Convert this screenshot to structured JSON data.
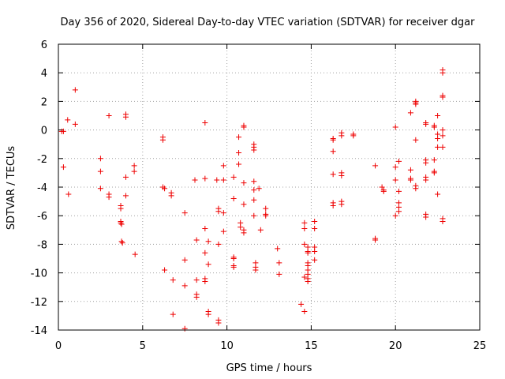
{
  "chart_data": {
    "type": "scatter",
    "title": "Day 356 of 2020, Sidereal Day-to-day VTEC variation (SDTVAR) for receiver dgar",
    "xlabel": "GPS time / hours",
    "ylabel": "SDTVAR / TECUs",
    "xlim": [
      0,
      25
    ],
    "ylim": [
      -14,
      6
    ],
    "xticks": [
      0,
      5,
      10,
      15,
      20,
      25
    ],
    "yticks": [
      -14,
      -12,
      -10,
      -8,
      -6,
      -4,
      -2,
      0,
      2,
      4,
      6
    ],
    "grid": true,
    "marker": "plus",
    "color": "#ee0000",
    "series": [
      {
        "name": "SDTVAR",
        "points": [
          [
            0.2,
            -0.1
          ],
          [
            0.3,
            -0.1
          ],
          [
            0.3,
            -2.6
          ],
          [
            0.55,
            0.7
          ],
          [
            0.6,
            -4.5
          ],
          [
            1.0,
            2.8
          ],
          [
            1.0,
            0.4
          ],
          [
            2.5,
            -2.0
          ],
          [
            2.5,
            -2.9
          ],
          [
            2.5,
            -4.1
          ],
          [
            3.0,
            1.0
          ],
          [
            3.0,
            -4.5
          ],
          [
            3.0,
            -4.7
          ],
          [
            3.7,
            -5.3
          ],
          [
            3.7,
            -5.5
          ],
          [
            3.7,
            -6.4
          ],
          [
            3.7,
            -6.5
          ],
          [
            3.75,
            -6.6
          ],
          [
            3.75,
            -7.8
          ],
          [
            3.8,
            -7.9
          ],
          [
            4.0,
            1.1
          ],
          [
            4.0,
            0.9
          ],
          [
            4.0,
            -3.3
          ],
          [
            4.0,
            -4.6
          ],
          [
            4.5,
            -2.5
          ],
          [
            4.5,
            -2.9
          ],
          [
            4.55,
            -8.7
          ],
          [
            6.2,
            -0.5
          ],
          [
            6.2,
            -0.7
          ],
          [
            6.2,
            -4.0
          ],
          [
            6.3,
            -4.1
          ],
          [
            6.3,
            -9.8
          ],
          [
            6.7,
            -4.4
          ],
          [
            6.7,
            -4.6
          ],
          [
            6.8,
            -10.5
          ],
          [
            6.8,
            -12.9
          ],
          [
            7.5,
            -5.8
          ],
          [
            7.5,
            -9.1
          ],
          [
            7.5,
            -10.9
          ],
          [
            7.5,
            -13.9
          ],
          [
            8.1,
            -3.5
          ],
          [
            8.2,
            -7.7
          ],
          [
            8.2,
            -10.5
          ],
          [
            8.2,
            -11.5
          ],
          [
            8.2,
            -11.7
          ],
          [
            8.7,
            0.5
          ],
          [
            8.7,
            -3.4
          ],
          [
            8.7,
            -6.9
          ],
          [
            8.7,
            -8.6
          ],
          [
            8.7,
            -10.4
          ],
          [
            8.7,
            -10.6
          ],
          [
            8.9,
            -7.8
          ],
          [
            8.9,
            -9.4
          ],
          [
            8.9,
            -12.7
          ],
          [
            8.9,
            -12.9
          ],
          [
            9.4,
            -3.5
          ],
          [
            9.5,
            -5.5
          ],
          [
            9.5,
            -5.7
          ],
          [
            9.5,
            -8.0
          ],
          [
            9.5,
            -13.3
          ],
          [
            9.5,
            -13.5
          ],
          [
            9.8,
            -2.5
          ],
          [
            9.8,
            -3.5
          ],
          [
            9.8,
            -5.8
          ],
          [
            9.8,
            -7.1
          ],
          [
            10.4,
            -3.3
          ],
          [
            10.4,
            -4.8
          ],
          [
            10.4,
            -8.9
          ],
          [
            10.4,
            -9.0
          ],
          [
            10.4,
            -9.5
          ],
          [
            10.4,
            -9.6
          ],
          [
            10.7,
            -0.5
          ],
          [
            10.7,
            -1.6
          ],
          [
            10.7,
            -2.4
          ],
          [
            10.8,
            -6.5
          ],
          [
            10.8,
            -6.8
          ],
          [
            11.0,
            0.3
          ],
          [
            11.0,
            0.2
          ],
          [
            11.0,
            -3.7
          ],
          [
            11.0,
            -5.2
          ],
          [
            11.0,
            -7.0
          ],
          [
            11.0,
            -7.2
          ],
          [
            11.6,
            -1.0
          ],
          [
            11.6,
            -1.2
          ],
          [
            11.6,
            -1.4
          ],
          [
            11.6,
            -3.6
          ],
          [
            11.6,
            -4.2
          ],
          [
            11.6,
            -4.9
          ],
          [
            11.6,
            -6.0
          ],
          [
            11.7,
            -9.3
          ],
          [
            11.7,
            -9.6
          ],
          [
            11.7,
            -9.8
          ],
          [
            11.9,
            -4.1
          ],
          [
            12.0,
            -7.0
          ],
          [
            12.3,
            -5.5
          ],
          [
            12.3,
            -5.9
          ],
          [
            12.3,
            -6.0
          ],
          [
            13.0,
            -8.3
          ],
          [
            13.1,
            -9.3
          ],
          [
            13.1,
            -10.1
          ],
          [
            14.4,
            -12.2
          ],
          [
            14.6,
            -6.5
          ],
          [
            14.6,
            -6.9
          ],
          [
            14.6,
            -8.0
          ],
          [
            14.6,
            -10.3
          ],
          [
            14.6,
            -12.7
          ],
          [
            14.8,
            -8.2
          ],
          [
            14.8,
            -8.5
          ],
          [
            14.8,
            -8.6
          ],
          [
            14.8,
            -9.3
          ],
          [
            14.8,
            -9.5
          ],
          [
            14.8,
            -9.8
          ],
          [
            14.8,
            -10.1
          ],
          [
            14.8,
            -10.4
          ],
          [
            14.8,
            -10.6
          ],
          [
            15.2,
            -6.4
          ],
          [
            15.2,
            -6.9
          ],
          [
            15.2,
            -8.2
          ],
          [
            15.2,
            -8.5
          ],
          [
            15.2,
            -9.1
          ],
          [
            16.3,
            -0.6
          ],
          [
            16.3,
            -0.7
          ],
          [
            16.3,
            -1.5
          ],
          [
            16.3,
            -3.1
          ],
          [
            16.3,
            -5.1
          ],
          [
            16.3,
            -5.3
          ],
          [
            16.8,
            -0.2
          ],
          [
            16.8,
            -0.4
          ],
          [
            16.8,
            -3.0
          ],
          [
            16.8,
            -3.2
          ],
          [
            16.8,
            -5.0
          ],
          [
            16.8,
            -5.2
          ],
          [
            17.5,
            -0.3
          ],
          [
            17.5,
            -0.4
          ],
          [
            18.8,
            -2.5
          ],
          [
            18.8,
            -7.6
          ],
          [
            18.8,
            -7.7
          ],
          [
            19.2,
            -4.0
          ],
          [
            19.3,
            -4.2
          ],
          [
            19.3,
            -4.3
          ],
          [
            20.0,
            0.2
          ],
          [
            20.0,
            -2.6
          ],
          [
            20.0,
            -3.5
          ],
          [
            20.0,
            -6.0
          ],
          [
            20.2,
            -2.2
          ],
          [
            20.2,
            -4.3
          ],
          [
            20.2,
            -5.1
          ],
          [
            20.2,
            -5.4
          ],
          [
            20.2,
            -5.7
          ],
          [
            20.9,
            1.2
          ],
          [
            20.9,
            -2.8
          ],
          [
            20.9,
            -3.4
          ],
          [
            20.9,
            -3.5
          ],
          [
            21.2,
            2.0
          ],
          [
            21.2,
            1.9
          ],
          [
            21.2,
            1.8
          ],
          [
            21.2,
            -0.7
          ],
          [
            21.2,
            -3.9
          ],
          [
            21.2,
            -4.1
          ],
          [
            21.8,
            0.5
          ],
          [
            21.8,
            0.4
          ],
          [
            21.8,
            -2.1
          ],
          [
            21.8,
            -2.3
          ],
          [
            21.8,
            -3.3
          ],
          [
            21.8,
            -3.5
          ],
          [
            21.8,
            -5.9
          ],
          [
            21.8,
            -6.1
          ],
          [
            22.3,
            0.3
          ],
          [
            22.3,
            0.2
          ],
          [
            22.3,
            -2.1
          ],
          [
            22.3,
            -2.9
          ],
          [
            22.3,
            -3.0
          ],
          [
            22.5,
            1.0
          ],
          [
            22.5,
            -0.3
          ],
          [
            22.5,
            -0.6
          ],
          [
            22.5,
            -1.2
          ],
          [
            22.5,
            -4.5
          ],
          [
            22.8,
            4.2
          ],
          [
            22.8,
            4.0
          ],
          [
            22.8,
            2.4
          ],
          [
            22.8,
            2.3
          ],
          [
            22.8,
            0.0
          ],
          [
            22.8,
            -0.4
          ],
          [
            22.8,
            -1.2
          ],
          [
            22.8,
            -6.2
          ],
          [
            22.8,
            -6.4
          ]
        ]
      }
    ]
  }
}
